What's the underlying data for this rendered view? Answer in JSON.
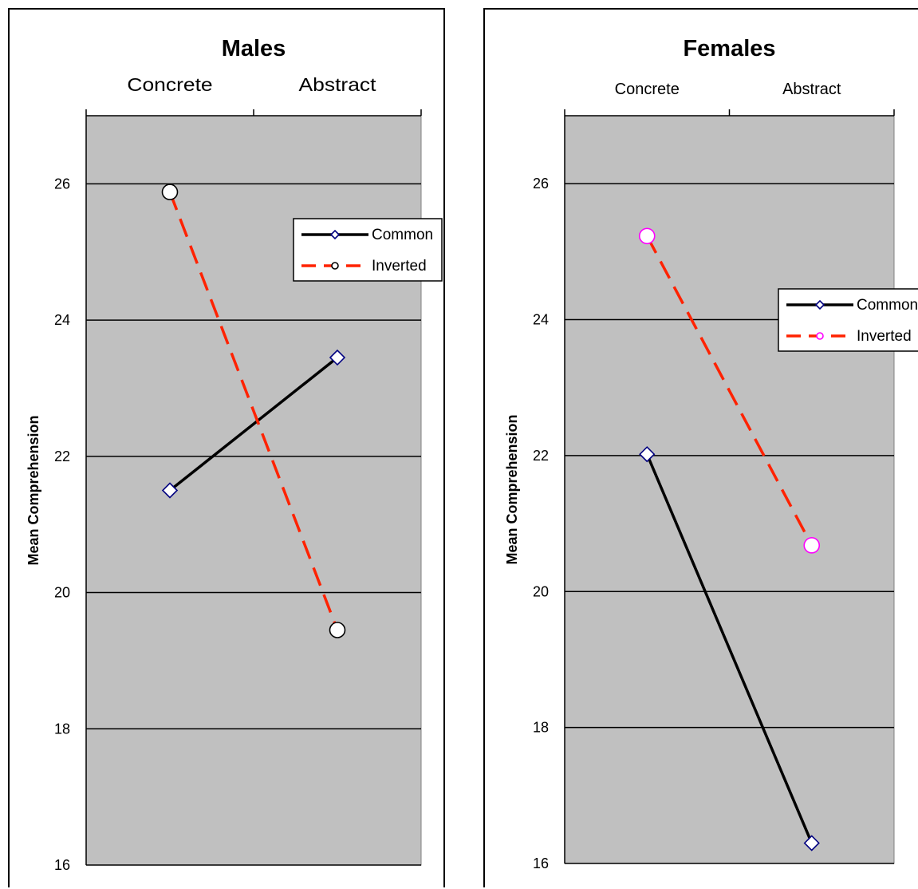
{
  "chart_data": [
    {
      "type": "line",
      "title": "Males",
      "categories": [
        "Concrete",
        "Abstract"
      ],
      "ylabel": "Mean Comprehension",
      "ylim": [
        16,
        27
      ],
      "yticks": [
        16,
        18,
        20,
        22,
        24,
        26
      ],
      "grid": true,
      "legend": "top-right",
      "series": [
        {
          "name": "Common",
          "values": [
            21.5,
            23.45
          ],
          "color": "#000000",
          "marker": "diamond",
          "marker_color": "#000080",
          "dash": "solid"
        },
        {
          "name": "Inverted",
          "values": [
            25.88,
            19.45
          ],
          "color": "#ff2200",
          "marker": "circle",
          "marker_color": "#000000",
          "dash": "dashed"
        }
      ]
    },
    {
      "type": "line",
      "title": "Females",
      "categories": [
        "Concrete",
        "Abstract"
      ],
      "ylabel": "Mean Comprehension",
      "ylim": [
        16,
        27
      ],
      "yticks": [
        16,
        18,
        20,
        22,
        24,
        26
      ],
      "grid": true,
      "legend": "right",
      "series": [
        {
          "name": "Common",
          "values": [
            22.02,
            16.3
          ],
          "color": "#000000",
          "marker": "diamond",
          "marker_color": "#000080",
          "dash": "solid"
        },
        {
          "name": "Inverted",
          "values": [
            25.23,
            20.68
          ],
          "color": "#ff2200",
          "marker": "circle",
          "marker_color": "#ff00ff",
          "dash": "dashed"
        }
      ]
    }
  ]
}
